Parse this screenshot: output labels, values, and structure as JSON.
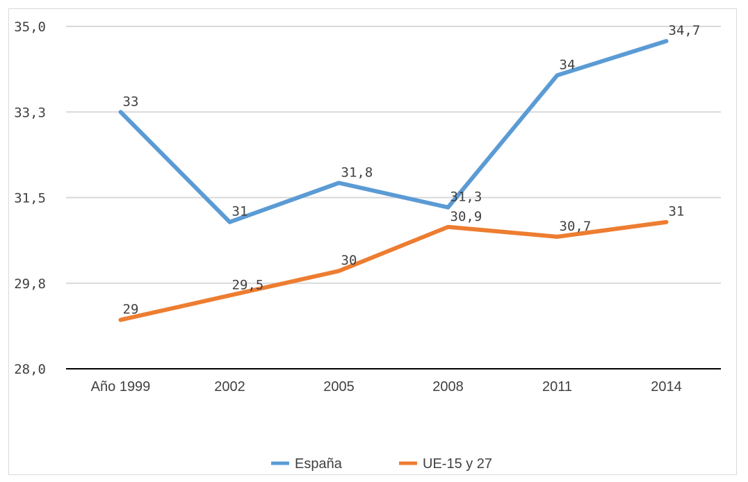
{
  "chart_data": {
    "type": "line",
    "title": "",
    "xlabel": "",
    "ylabel": "",
    "categories": [
      "Año 1999",
      "2002",
      "2005",
      "2008",
      "2011",
      "2014"
    ],
    "ylim": [
      28.0,
      35.0
    ],
    "yticks": [
      "28,0",
      "29,8",
      "31,5",
      "33,3",
      "35,0"
    ],
    "ytick_values": [
      28.0,
      29.75,
      31.5,
      33.25,
      35.0
    ],
    "grid": true,
    "legend_position": "bottom",
    "series": [
      {
        "name": "España",
        "color": "#5b9bd5",
        "values": [
          33.25,
          31.0,
          31.8,
          31.3,
          34.0,
          34.7
        ],
        "labels": [
          "33",
          "31",
          "31,8",
          "31,3",
          "34",
          "34,7"
        ]
      },
      {
        "name": "UE-15 y 27",
        "color": "#ed7d31",
        "values": [
          29.0,
          29.5,
          30.0,
          30.9,
          30.7,
          31.0
        ],
        "labels": [
          "29",
          "29,5",
          "30",
          "30,9",
          "30,7",
          "31"
        ]
      }
    ]
  }
}
